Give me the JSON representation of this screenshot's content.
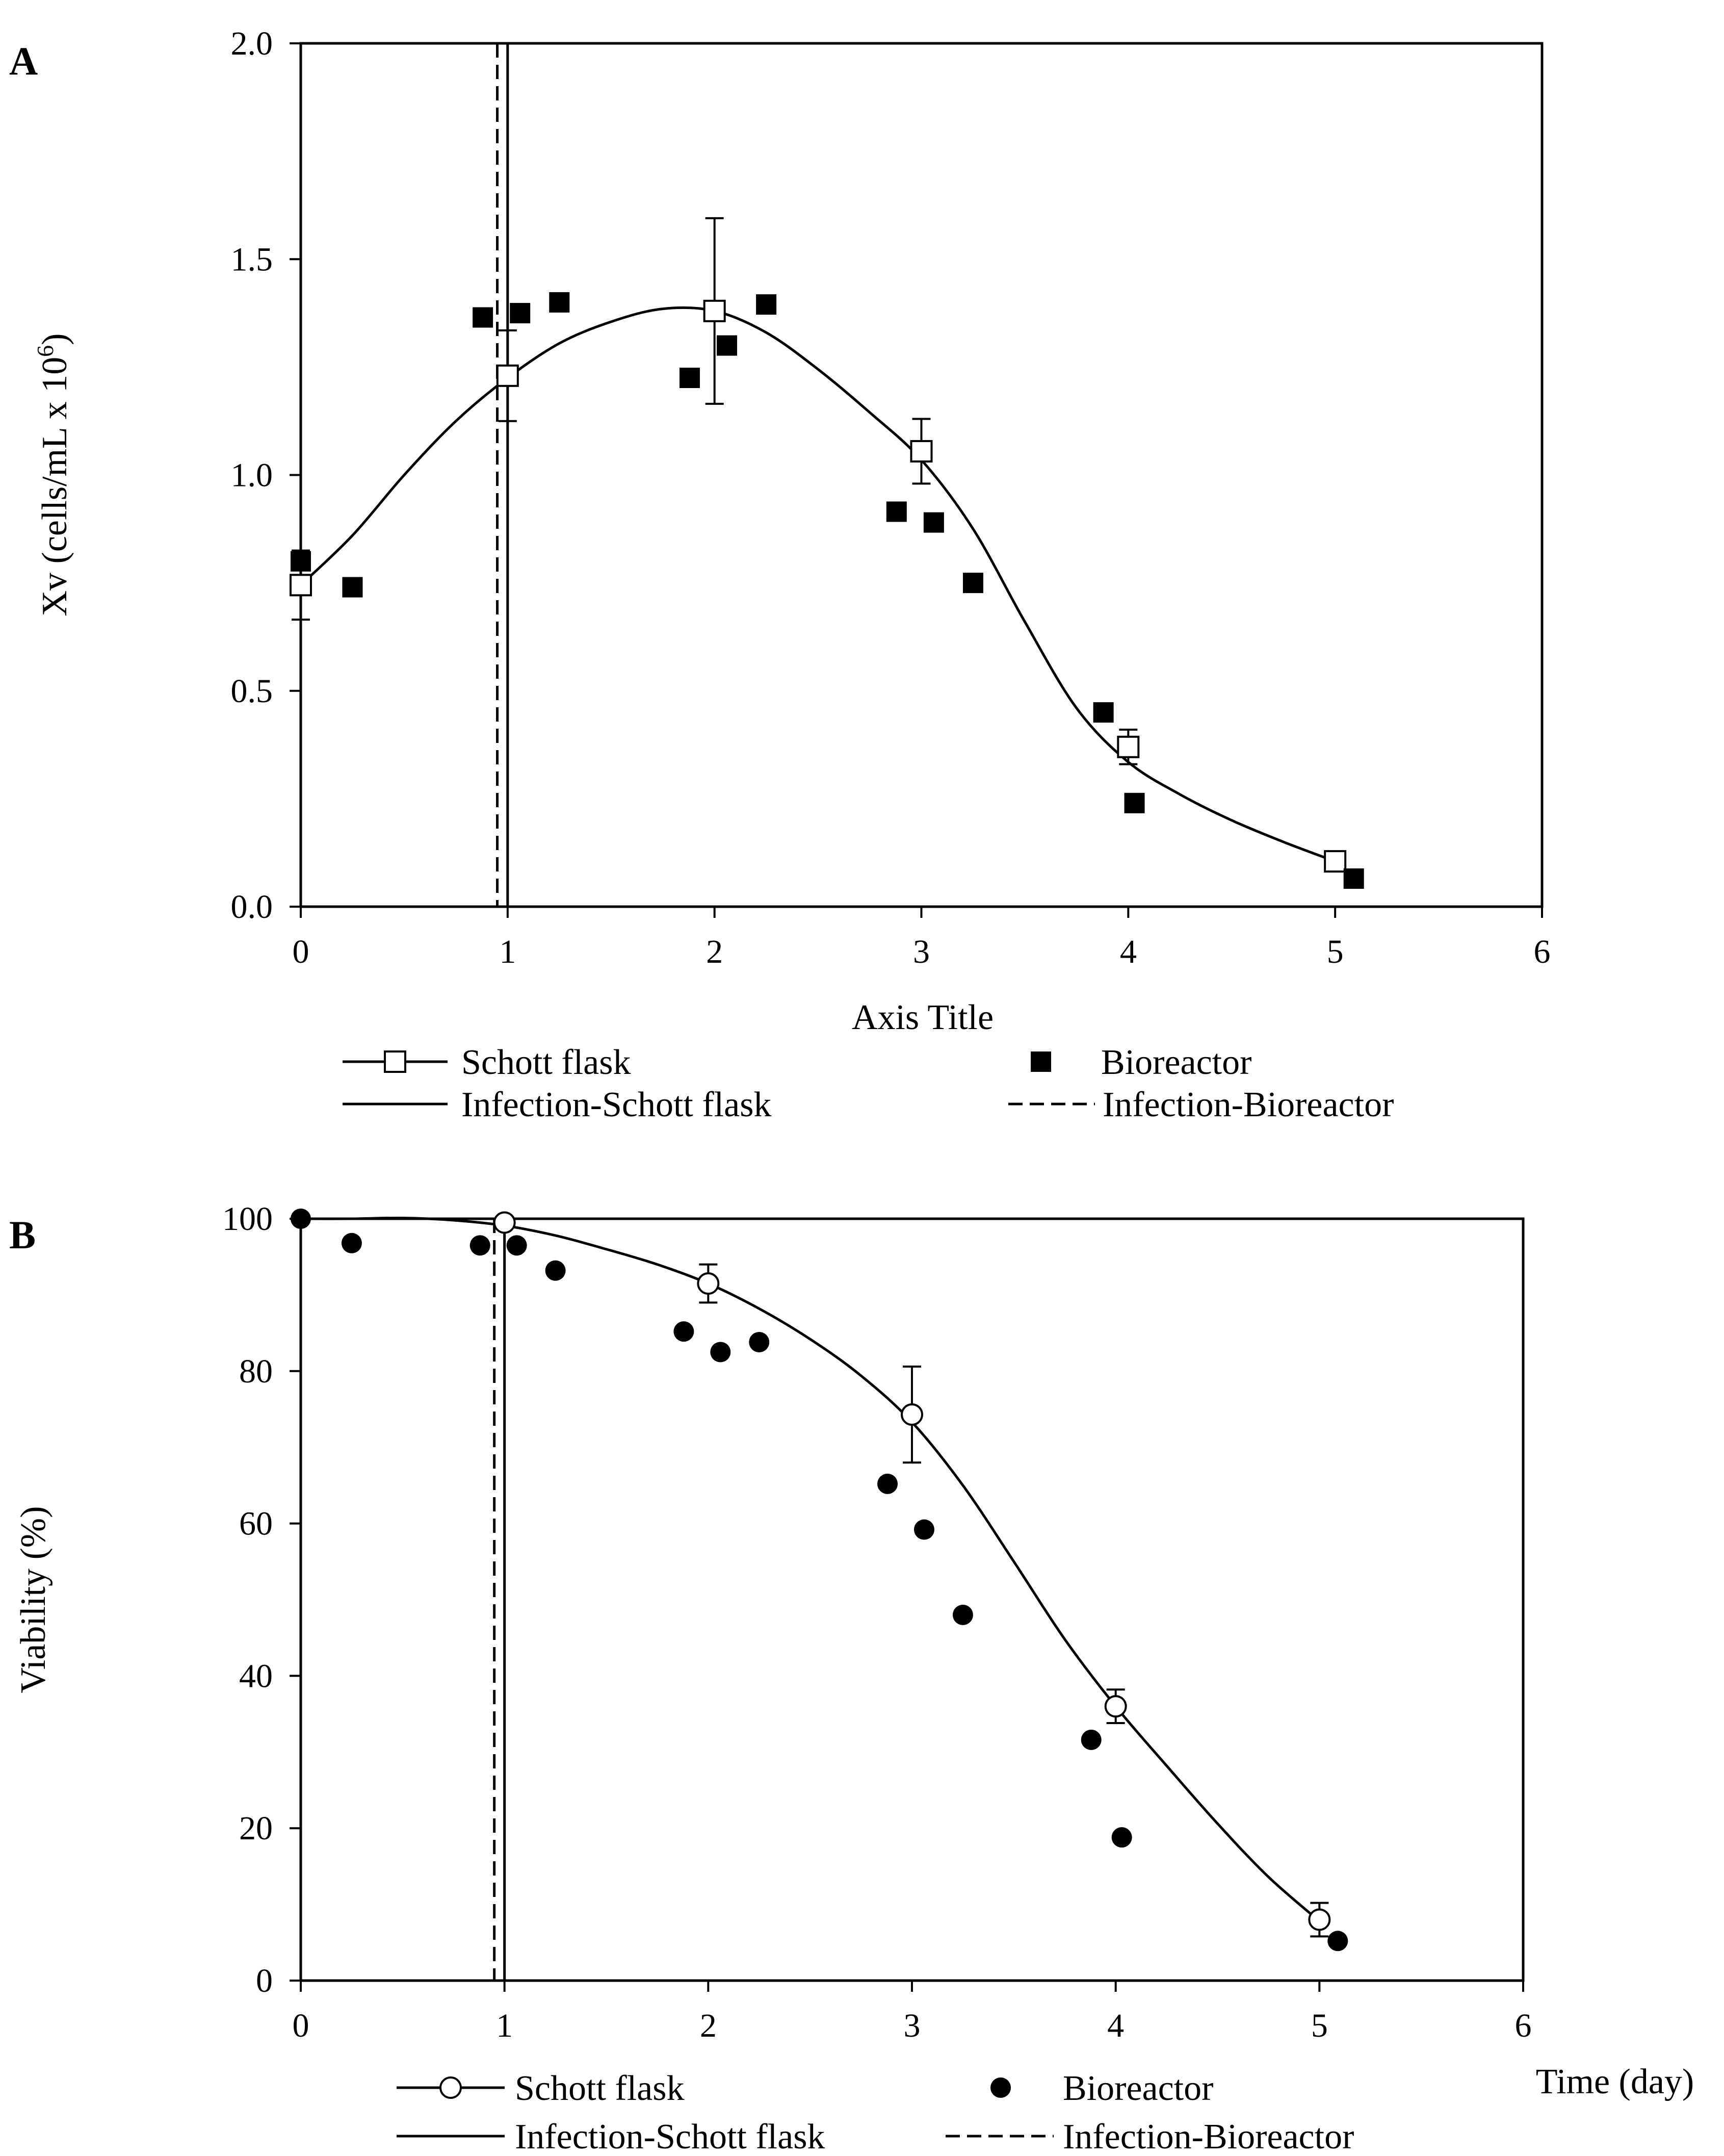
{
  "chart_data": [
    {
      "type": "scatter",
      "panel_label": "A",
      "title": "",
      "xlabel": "Axis Title",
      "ylabel": "Xv (cells/mL x 10",
      "ylabel_sup": "6",
      "ylabel_tail": ")",
      "xlim": [
        0,
        6
      ],
      "ylim": [
        0,
        2.0
      ],
      "x_ticks": [
        0,
        1,
        2,
        3,
        4,
        5,
        6
      ],
      "x_tick_labels": [
        "0",
        "1",
        "2",
        "3",
        "4",
        "5",
        "6"
      ],
      "y_ticks": [
        0,
        0.5,
        1.0,
        1.5,
        2.0
      ],
      "y_tick_labels": [
        "0.0",
        "0.5",
        "1.0",
        "1.5",
        "2.0"
      ],
      "grid": false,
      "series": [
        {
          "name": "Schott flask",
          "marker": "open-square",
          "x": [
            0,
            1,
            2,
            3,
            4,
            5
          ],
          "y": [
            0.745,
            1.23,
            1.38,
            1.055,
            0.37,
            0.105
          ],
          "err": [
            0.08,
            0.105,
            0.215,
            0.075,
            0.04,
            0.02
          ]
        },
        {
          "name": "Bioreactor",
          "marker": "filled-square",
          "x": [
            0,
            0.25,
            0.88,
            1.06,
            1.25,
            1.88,
            2.06,
            2.25,
            2.88,
            3.06,
            3.25,
            3.88,
            4.03,
            5.09
          ],
          "y": [
            0.8,
            0.74,
            1.365,
            1.375,
            1.4,
            1.225,
            1.3,
            1.395,
            0.915,
            0.89,
            0.75,
            0.45,
            0.24,
            0.065
          ]
        }
      ],
      "fit_curve": {
        "name": "Schott flask",
        "x": [
          0,
          0.25,
          0.5,
          0.75,
          1.0,
          1.25,
          1.5,
          1.75,
          2.0,
          2.25,
          2.5,
          2.75,
          3.0,
          3.25,
          3.5,
          3.75,
          4.0,
          4.25,
          4.5,
          4.75,
          5.0
        ],
        "y": [
          0.745,
          0.86,
          1.0,
          1.125,
          1.225,
          1.305,
          1.355,
          1.385,
          1.38,
          1.33,
          1.245,
          1.145,
          1.035,
          0.875,
          0.66,
          0.46,
          0.335,
          0.26,
          0.2,
          0.15,
          0.105
        ]
      },
      "infection_lines": [
        {
          "name": "Infection-Schott flask",
          "x": 1.0,
          "style": "solid"
        },
        {
          "name": "Infection-Bioreactor",
          "x": 0.95,
          "style": "dashed"
        }
      ],
      "legend": [
        {
          "label": "Schott flask",
          "symbol": "line-open-square"
        },
        {
          "label": "Bioreactor",
          "symbol": "filled-square"
        },
        {
          "label": "Infection-Schott flask",
          "symbol": "solid-line"
        },
        {
          "label": "Infection-Bioreactor",
          "symbol": "dashed-line"
        }
      ]
    },
    {
      "type": "scatter",
      "panel_label": "B",
      "title": "",
      "xlabel": "Time (day)",
      "ylabel": "Viability  (%)",
      "xlim": [
        0,
        6
      ],
      "ylim": [
        0,
        100
      ],
      "x_ticks": [
        0,
        1,
        2,
        3,
        4,
        5,
        6
      ],
      "x_tick_labels": [
        "0",
        "1",
        "2",
        "3",
        "4",
        "5",
        "6"
      ],
      "y_ticks": [
        0,
        20,
        40,
        60,
        80,
        100
      ],
      "y_tick_labels": [
        "0",
        "20",
        "40",
        "60",
        "80",
        "100"
      ],
      "grid": false,
      "series": [
        {
          "name": "Schott flask",
          "marker": "open-circle",
          "x": [
            1,
            2,
            3,
            4,
            5
          ],
          "y": [
            99.5,
            91.5,
            74.3,
            36.0,
            8.0
          ],
          "err": [
            0.5,
            2.5,
            6.3,
            2.2,
            2.2
          ]
        },
        {
          "name": "Bioreactor",
          "marker": "filled-circle",
          "x": [
            0,
            0.25,
            0.88,
            1.06,
            1.25,
            1.88,
            2.06,
            2.25,
            2.88,
            3.06,
            3.25,
            3.88,
            4.03,
            5.09
          ],
          "y": [
            100,
            96.8,
            96.5,
            96.5,
            93.2,
            85.2,
            82.5,
            83.8,
            65.2,
            59.2,
            48.0,
            31.6,
            18.8,
            5.2
          ]
        }
      ],
      "fit_curve": {
        "name": "Schott flask",
        "x": [
          0,
          0.25,
          0.5,
          0.75,
          1.0,
          1.25,
          1.5,
          1.75,
          2.0,
          2.25,
          2.5,
          2.75,
          3.0,
          3.25,
          3.5,
          3.75,
          4.0,
          4.25,
          4.5,
          4.75,
          5.0
        ],
        "y": [
          100,
          100,
          100.1,
          99.8,
          99.1,
          97.8,
          96.0,
          94.0,
          91.5,
          88.2,
          84.2,
          79.4,
          73.3,
          65.0,
          55.0,
          44.8,
          36.0,
          28.2,
          20.6,
          13.6,
          7.8
        ]
      },
      "infection_lines": [
        {
          "name": "Infection-Schott flask",
          "x": 1.0,
          "style": "solid"
        },
        {
          "name": "Infection-Bioreactor",
          "x": 0.95,
          "style": "dashed"
        }
      ],
      "legend": [
        {
          "label": "Schott flask",
          "symbol": "line-open-circle"
        },
        {
          "label": "Bioreactor",
          "symbol": "filled-circle"
        },
        {
          "label": "Infection-Schott flask",
          "symbol": "solid-line"
        },
        {
          "label": "Infection-Bioreactor",
          "symbol": "dashed-line"
        }
      ]
    }
  ]
}
